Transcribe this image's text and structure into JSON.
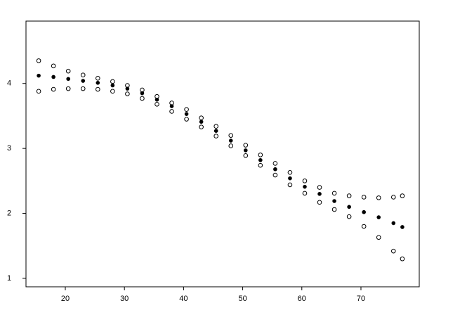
{
  "chart_data": {
    "type": "scatter",
    "x": [
      15.5,
      18,
      20.5,
      23,
      25.5,
      28,
      30.5,
      33,
      35.5,
      38,
      40.5,
      43,
      45.5,
      48,
      50.5,
      53,
      55.5,
      58,
      60.5,
      63,
      65.5,
      68,
      70.5,
      73,
      75.5,
      77
    ],
    "series": [
      {
        "color": "#000000",
        "marker": "open-circle",
        "values": [
          4.35,
          4.27,
          4.19,
          4.13,
          4.08,
          4.03,
          3.97,
          3.9,
          3.8,
          3.7,
          3.6,
          3.47,
          3.34,
          3.2,
          3.05,
          2.9,
          2.77,
          2.63,
          2.5,
          2.4,
          2.31,
          2.27,
          2.25,
          2.24,
          2.25,
          2.27
        ]
      },
      {
        "color": "#000000",
        "marker": "filled-circle",
        "values": [
          4.12,
          4.1,
          4.07,
          4.04,
          4.01,
          3.97,
          3.92,
          3.85,
          3.75,
          3.65,
          3.53,
          3.41,
          3.27,
          3.12,
          2.97,
          2.82,
          2.68,
          2.54,
          2.41,
          2.3,
          2.19,
          2.1,
          2.02,
          1.94,
          1.85,
          1.79
        ]
      },
      {
        "color": "#000000",
        "marker": "open-circle",
        "values": [
          3.88,
          3.91,
          3.92,
          3.92,
          3.91,
          3.88,
          3.84,
          3.77,
          3.68,
          3.57,
          3.45,
          3.33,
          3.19,
          3.04,
          2.89,
          2.74,
          2.59,
          2.44,
          2.31,
          2.17,
          2.06,
          1.95,
          1.8,
          1.63,
          1.42,
          1.3
        ]
      }
    ],
    "xlim": [
      13.35,
      79.86
    ],
    "xticks": [
      20,
      30,
      40,
      50,
      60,
      70
    ],
    "ylim": [
      0.87,
      4.96
    ],
    "yticks": [
      1,
      2,
      3,
      4
    ],
    "grid": false
  }
}
